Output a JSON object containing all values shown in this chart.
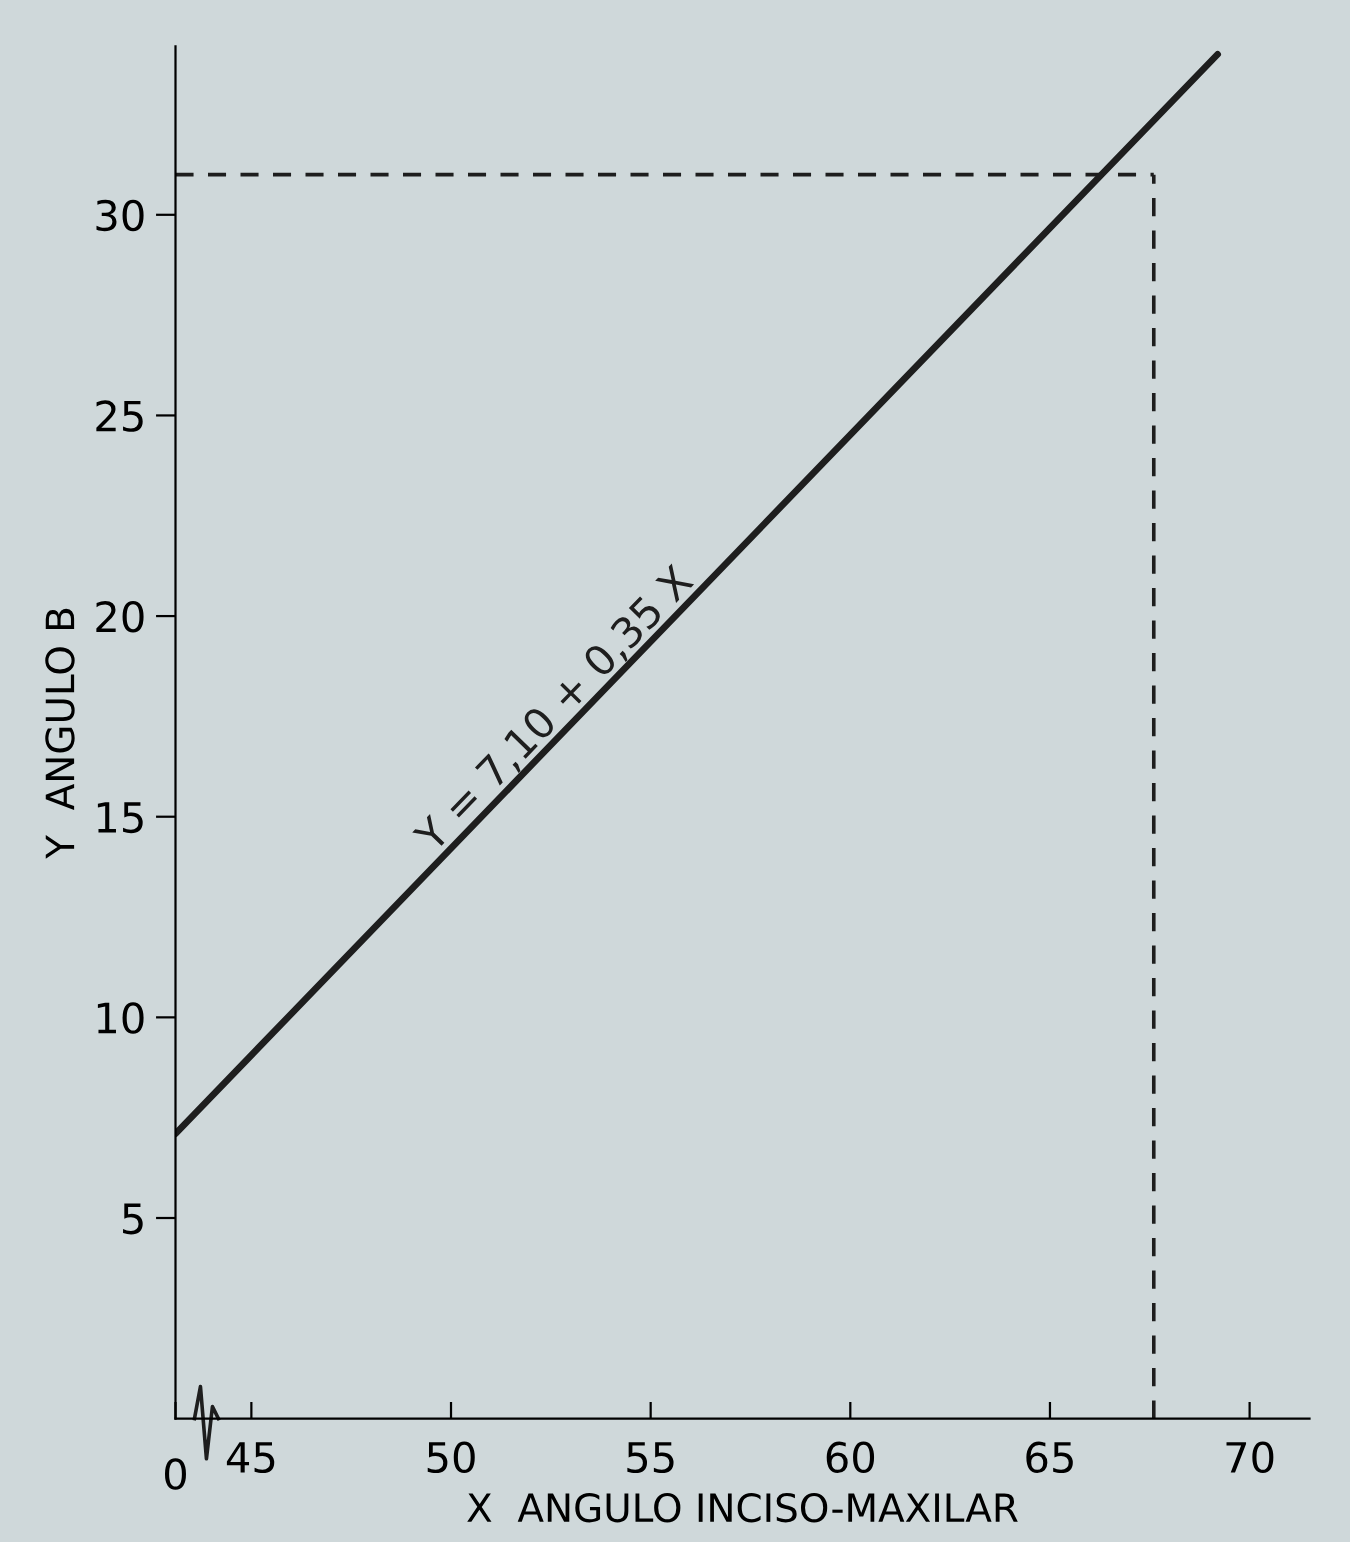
{
  "chart_data": {
    "type": "line",
    "xlabel": "X  ANGULO INCISO-MAXILAR",
    "ylabel": "Y  ANGULO B",
    "series": [
      {
        "color": "#1e1e1e",
        "x": [
          43.1,
          69.2
        ],
        "values": [
          7.1,
          34.0
        ]
      }
    ],
    "annotations": [
      {
        "text": "Y = 7,10 + 0,35 X",
        "x": 53,
        "y": 17.3
      },
      "0"
    ],
    "ref_lines": [
      {
        "axis": "y",
        "value": 31.0,
        "line_style": "dashed",
        "color": "#1e1e1e"
      },
      {
        "axis": "x",
        "value": 67.6,
        "line_style": "dashed",
        "color": "#1e1e1e"
      }
    ],
    "xlim": [
      43.1,
      71.5
    ],
    "ylim": [
      0,
      34.2
    ],
    "xticks": [
      {
        "value": 43.1,
        "label": null
      },
      45,
      50,
      55,
      60,
      65,
      70
    ],
    "yticks": [
      5,
      10,
      15,
      20,
      25,
      30
    ],
    "grid": false,
    "marker": "none",
    "line_style": "solid"
  }
}
